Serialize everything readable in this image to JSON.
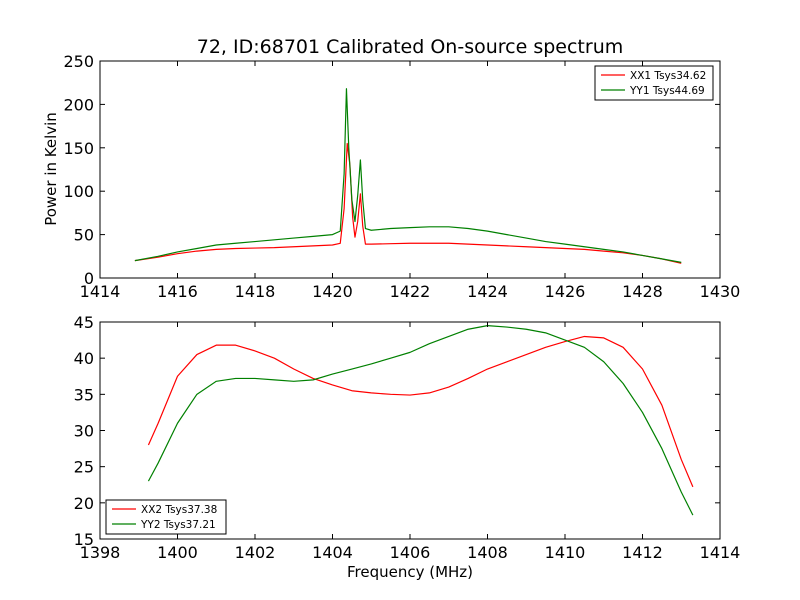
{
  "figure": {
    "title": "72, ID:68701 Calibrated On-source spectrum",
    "xlabel": "Frequency (MHz)"
  },
  "chart_data": [
    {
      "type": "line",
      "title": "72, ID:68701 Calibrated On-source spectrum",
      "xlabel": "",
      "ylabel": "Power in Kelvin",
      "xlim": [
        1414,
        1430
      ],
      "ylim": [
        0,
        250
      ],
      "xticks": [
        1414,
        1416,
        1418,
        1420,
        1422,
        1424,
        1426,
        1428,
        1430
      ],
      "yticks": [
        0,
        50,
        100,
        150,
        200,
        250
      ],
      "grid": false,
      "legend": "top-right",
      "series": [
        {
          "name": "XX1 Tsys34.62",
          "color": "#ff0000",
          "points": [
            [
              1414.9,
              20
            ],
            [
              1415.5,
              24
            ],
            [
              1416,
              28
            ],
            [
              1416.5,
              31
            ],
            [
              1417,
              33
            ],
            [
              1417.5,
              34
            ],
            [
              1418,
              34.5
            ],
            [
              1418.5,
              35
            ],
            [
              1419,
              36
            ],
            [
              1419.5,
              37
            ],
            [
              1420,
              38
            ],
            [
              1420.2,
              40
            ],
            [
              1420.3,
              80
            ],
            [
              1420.38,
              155
            ],
            [
              1420.45,
              130
            ],
            [
              1420.52,
              70
            ],
            [
              1420.58,
              47
            ],
            [
              1420.65,
              65
            ],
            [
              1420.72,
              97
            ],
            [
              1420.78,
              60
            ],
            [
              1420.85,
              39
            ],
            [
              1421,
              39
            ],
            [
              1421.5,
              39.5
            ],
            [
              1422,
              40
            ],
            [
              1422.5,
              40
            ],
            [
              1423,
              40
            ],
            [
              1423.5,
              39
            ],
            [
              1424,
              38
            ],
            [
              1424.5,
              37
            ],
            [
              1425,
              36
            ],
            [
              1425.5,
              35
            ],
            [
              1426,
              34
            ],
            [
              1426.5,
              33
            ],
            [
              1427,
              31
            ],
            [
              1427.5,
              29
            ],
            [
              1428,
              26
            ],
            [
              1428.5,
              22
            ],
            [
              1429,
              17
            ]
          ]
        },
        {
          "name": "YY1 Tsys44.69",
          "color": "#008000",
          "points": [
            [
              1414.9,
              20
            ],
            [
              1415.5,
              25
            ],
            [
              1416,
              30
            ],
            [
              1416.5,
              34
            ],
            [
              1417,
              38
            ],
            [
              1417.5,
              40
            ],
            [
              1418,
              42
            ],
            [
              1418.5,
              44
            ],
            [
              1419,
              46
            ],
            [
              1419.5,
              48
            ],
            [
              1420,
              50
            ],
            [
              1420.2,
              54
            ],
            [
              1420.3,
              120
            ],
            [
              1420.36,
              218
            ],
            [
              1420.42,
              150
            ],
            [
              1420.5,
              90
            ],
            [
              1420.58,
              65
            ],
            [
              1420.65,
              95
            ],
            [
              1420.72,
              136
            ],
            [
              1420.78,
              90
            ],
            [
              1420.85,
              57
            ],
            [
              1421,
              55
            ],
            [
              1421.5,
              57
            ],
            [
              1422,
              58
            ],
            [
              1422.5,
              59
            ],
            [
              1423,
              59
            ],
            [
              1423.5,
              57
            ],
            [
              1424,
              54
            ],
            [
              1424.5,
              50
            ],
            [
              1425,
              46
            ],
            [
              1425.5,
              42
            ],
            [
              1426,
              39
            ],
            [
              1426.5,
              36
            ],
            [
              1427,
              33
            ],
            [
              1427.5,
              30
            ],
            [
              1428,
              26
            ],
            [
              1428.5,
              22
            ],
            [
              1429,
              18
            ]
          ]
        }
      ]
    },
    {
      "type": "line",
      "title": "",
      "xlabel": "Frequency (MHz)",
      "ylabel": "",
      "xlim": [
        1398,
        1414
      ],
      "ylim": [
        15,
        45
      ],
      "xticks": [
        1398,
        1400,
        1402,
        1404,
        1406,
        1408,
        1410,
        1412,
        1414
      ],
      "yticks": [
        15,
        20,
        25,
        30,
        35,
        40,
        45
      ],
      "grid": false,
      "legend": "bottom-left",
      "series": [
        {
          "name": "XX2 Tsys37.38",
          "color": "#ff0000",
          "points": [
            [
              1399.25,
              28
            ],
            [
              1399.5,
              31
            ],
            [
              1400,
              37.5
            ],
            [
              1400.5,
              40.5
            ],
            [
              1401,
              41.8
            ],
            [
              1401.5,
              41.8
            ],
            [
              1402,
              41
            ],
            [
              1402.5,
              40
            ],
            [
              1403,
              38.5
            ],
            [
              1403.5,
              37.2
            ],
            [
              1404,
              36.3
            ],
            [
              1404.5,
              35.5
            ],
            [
              1405,
              35.2
            ],
            [
              1405.5,
              35
            ],
            [
              1406,
              34.9
            ],
            [
              1406.5,
              35.2
            ],
            [
              1407,
              36
            ],
            [
              1407.5,
              37.2
            ],
            [
              1408,
              38.5
            ],
            [
              1408.5,
              39.5
            ],
            [
              1409,
              40.5
            ],
            [
              1409.5,
              41.5
            ],
            [
              1410,
              42.3
            ],
            [
              1410.5,
              43
            ],
            [
              1411,
              42.8
            ],
            [
              1411.5,
              41.5
            ],
            [
              1412,
              38.5
            ],
            [
              1412.5,
              33.5
            ],
            [
              1413,
              26
            ],
            [
              1413.3,
              22.2
            ]
          ]
        },
        {
          "name": "YY2 Tsys37.21",
          "color": "#008000",
          "points": [
            [
              1399.25,
              23
            ],
            [
              1399.5,
              25.5
            ],
            [
              1400,
              31
            ],
            [
              1400.5,
              35
            ],
            [
              1401,
              36.8
            ],
            [
              1401.5,
              37.2
            ],
            [
              1402,
              37.2
            ],
            [
              1402.5,
              37
            ],
            [
              1403,
              36.8
            ],
            [
              1403.5,
              37
            ],
            [
              1404,
              37.8
            ],
            [
              1404.5,
              38.5
            ],
            [
              1405,
              39.2
            ],
            [
              1405.5,
              40
            ],
            [
              1406,
              40.8
            ],
            [
              1406.5,
              42
            ],
            [
              1407,
              43
            ],
            [
              1407.5,
              44
            ],
            [
              1408,
              44.5
            ],
            [
              1408.5,
              44.3
            ],
            [
              1409,
              44
            ],
            [
              1409.5,
              43.5
            ],
            [
              1410,
              42.5
            ],
            [
              1410.5,
              41.5
            ],
            [
              1411,
              39.5
            ],
            [
              1411.5,
              36.5
            ],
            [
              1412,
              32.5
            ],
            [
              1412.5,
              27.5
            ],
            [
              1413,
              21.5
            ],
            [
              1413.3,
              18.3
            ]
          ]
        }
      ]
    }
  ]
}
